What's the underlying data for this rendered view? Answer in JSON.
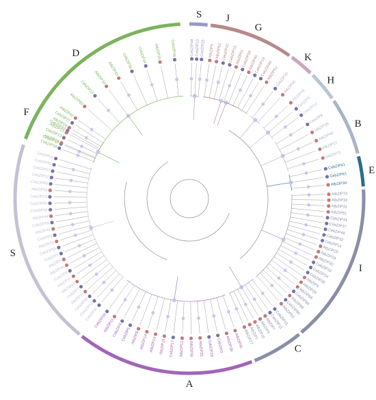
{
  "legend": {
    "arabidopsis_dot": "#c47979",
    "celery_dot": "#7474a8",
    "bootstrap_dot": "#c6c6ee",
    "branch": "#9a9a9a"
  },
  "groups": [
    {
      "label": "D",
      "color": "#7bb35c",
      "start": 290,
      "end": 357,
      "label_angle": 322,
      "leaves": [
        "CebZIP12",
        "CebZIP43",
        "AtbZIP41",
        "AtbZIP60",
        "CebZIP15",
        "AtbZIP18",
        "AtbZIP62",
        "CebZIP36",
        "CebZIP44",
        "AtbZIP29",
        "CebZIP46"
      ]
    },
    {
      "label": "F",
      "color": "#7bb35c",
      "start": 290,
      "end": 304,
      "label_angle": 298,
      "leaves": [
        "CebZIP18",
        "AtbZIP19",
        "CebZIP13",
        "AtbZIP23",
        "AtbZIP24",
        "CebZIP37"
      ]
    },
    {
      "label": "S",
      "color": "#9a9ac6",
      "start": 0,
      "end": 6,
      "label_angle": 3,
      "leaves": [
        "CebZIP48",
        "CebZIP13",
        "CebZIP25"
      ]
    },
    {
      "label": "J",
      "color": "#b58a8a",
      "start": 7,
      "end": 35,
      "label_angle": 12,
      "leaves": [
        "AtbZIP5",
        "AtbZIP62",
        "CebZIP42",
        "CebZIP16",
        "AtbZIP61",
        "CebZIP34",
        "AtbZIP40",
        "CebZIP19",
        "CebZIP40",
        "AtbZIP52"
      ]
    },
    {
      "label": "G",
      "color": "#b58a8a",
      "start": 8,
      "end": 28,
      "label_angle": 22,
      "leaves": []
    },
    {
      "label": "K",
      "color": "#c9a6c0",
      "start": 36,
      "end": 44,
      "label_angle": 40,
      "leaves": [
        "CebZIP20",
        "AtbZIP45"
      ]
    },
    {
      "label": "H",
      "color": "#b9c4d4",
      "start": 45,
      "end": 55,
      "label_angle": 50,
      "leaves": [
        "AtbZIP56",
        "CebZIP9",
        "CebZIP10"
      ]
    },
    {
      "label": "B",
      "color": "#a9b4c6",
      "start": 56,
      "end": 75,
      "label_angle": 66,
      "leaves": [
        "CebZIP8",
        "AtbZIP28",
        "AtbZIP49",
        "AtbZIP17",
        "AtbZIP72"
      ]
    },
    {
      "label": "E",
      "color": "#2c6d8f",
      "start": 76,
      "end": 86,
      "label_angle": 81,
      "leaves": [
        "CebZIP41",
        "CebZIP61",
        "AtbZIP34"
      ]
    },
    {
      "label": "I",
      "color": "#8a8fa6",
      "start": 87,
      "end": 140,
      "label_angle": 112,
      "leaves": [
        "AtbZIP74",
        "AtbZIP33",
        "AtbZIP31",
        "AtbZIP51",
        "CebZIP31",
        "CebZIP27",
        "CebZIP48",
        "CebZIP32",
        "CebZIP14",
        "AtbZIP25",
        "AtbZIP29",
        "AtbZIP30",
        "CebZIP33",
        "CebZIP34",
        "CebZIP30",
        "AtbZIP3",
        "AtbZIP26",
        "AtbZIP68",
        "CebZIP69",
        "AtbZIP66",
        "CebZIP60",
        "AtbZIP53"
      ]
    },
    {
      "label": "C",
      "color": "#8a8fa6",
      "start": 141,
      "end": 158,
      "label_angle": 144,
      "leaves": [
        "CebZIP15",
        "CebZIP11",
        "AtbZIP7",
        "AtbZIP9",
        "AtbZIP10",
        "AtbZIP1",
        "AtbZIP27"
      ]
    },
    {
      "label": "A",
      "color": "#a264b8",
      "start": 159,
      "end": 218,
      "label_angle": 180,
      "leaves": [
        "AtbZIP40",
        "AtbZIP39",
        "CebZIP3",
        "CebZIP28",
        "AtbZIP35",
        "AtbZIP36",
        "AtbZIP12",
        "CebZIP17",
        "AtbZIP15",
        "AtbZIP13",
        "AtbZIP14",
        "AtbZIP8",
        "CebZIP5",
        "CebZIP4",
        "AtbZIP11",
        "CebZIP28"
      ]
    },
    {
      "label": "S",
      "color": "#c2c2d4",
      "start": 219,
      "end": 288,
      "label_angle": 253,
      "leaves": [
        "CebZIP47",
        "CebZIP53",
        "CebZIP45",
        "AtbZIP11",
        "CebZIP7",
        "AtbZIP43",
        "AtbZIP47",
        "CebZIP6",
        "AtbZIP44",
        "AtbZIP5",
        "CebZIP1",
        "CebZIP55",
        "AtbZIP15",
        "CebZIP3",
        "AtbZIP42",
        "CebZIP59",
        "AtbZIP44",
        "CebZIP54",
        "CebZIP56",
        "CebZIP23",
        "AtbZIP53",
        "CebZIP60",
        "CebZIP52",
        "CebZIP22",
        "CebZIP51",
        "CebZIP50"
      ]
    }
  ]
}
